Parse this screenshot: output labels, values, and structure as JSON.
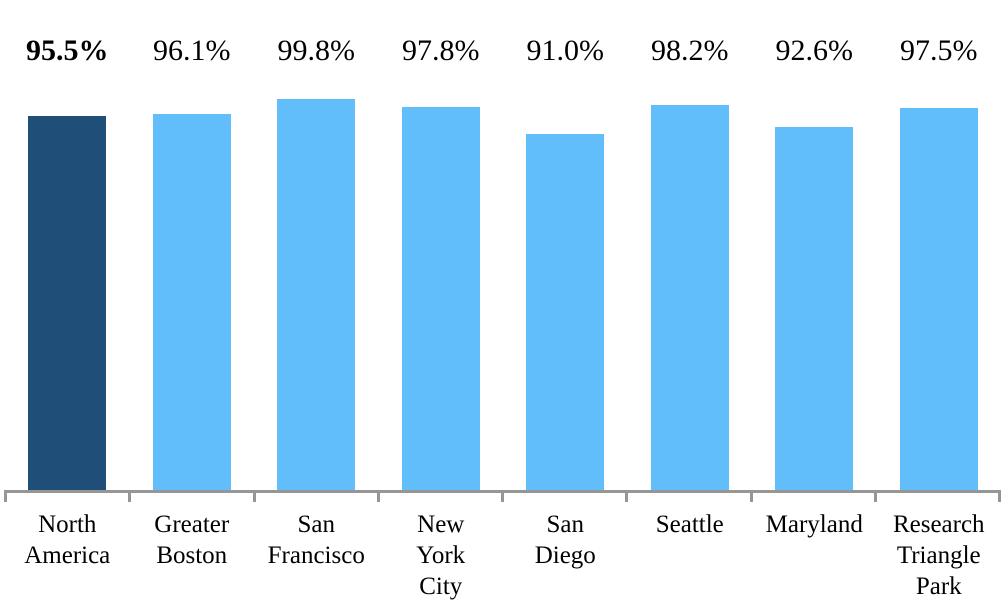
{
  "chart_data": {
    "type": "bar",
    "title": "",
    "xlabel": "",
    "ylabel": "",
    "categories": [
      "North America",
      "Greater Boston",
      "San Francisco",
      "New York City",
      "San Diego",
      "Seattle",
      "Maryland",
      "Research Triangle Park"
    ],
    "tick_label_lines": [
      "North\nAmerica",
      "Greater\nBoston",
      "San\nFrancisco",
      "New\nYork\nCity",
      "San\nDiego",
      "Seattle",
      "Maryland",
      "Research\nTriangle\nPark"
    ],
    "values": [
      95.5,
      96.1,
      99.8,
      97.8,
      91.0,
      98.2,
      92.6,
      97.5
    ],
    "value_labels": [
      "95.5%",
      "96.1%",
      "99.8%",
      "97.8%",
      "91.0%",
      "98.2%",
      "92.6%",
      "97.5%"
    ],
    "highlight_index": 0,
    "ylim": [
      0,
      100
    ],
    "grid": false,
    "legend_position": "none",
    "colors": {
      "highlight_bar": "#1F4E79",
      "bar": "#61BEFA",
      "axis": "#969696",
      "text": "#000000",
      "background": "#FFFFFF"
    }
  }
}
